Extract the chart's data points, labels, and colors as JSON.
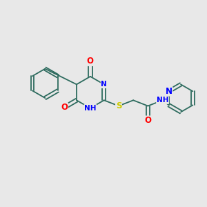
{
  "bg_color": "#e8e8e8",
  "bond_color": "#2d6b5e",
  "bond_width": 1.3,
  "atom_colors": {
    "O": "#ff0000",
    "N": "#0000ff",
    "S": "#cccc00",
    "H": "#5588aa",
    "C": "#2d6b5e"
  },
  "font_size": 7.5
}
